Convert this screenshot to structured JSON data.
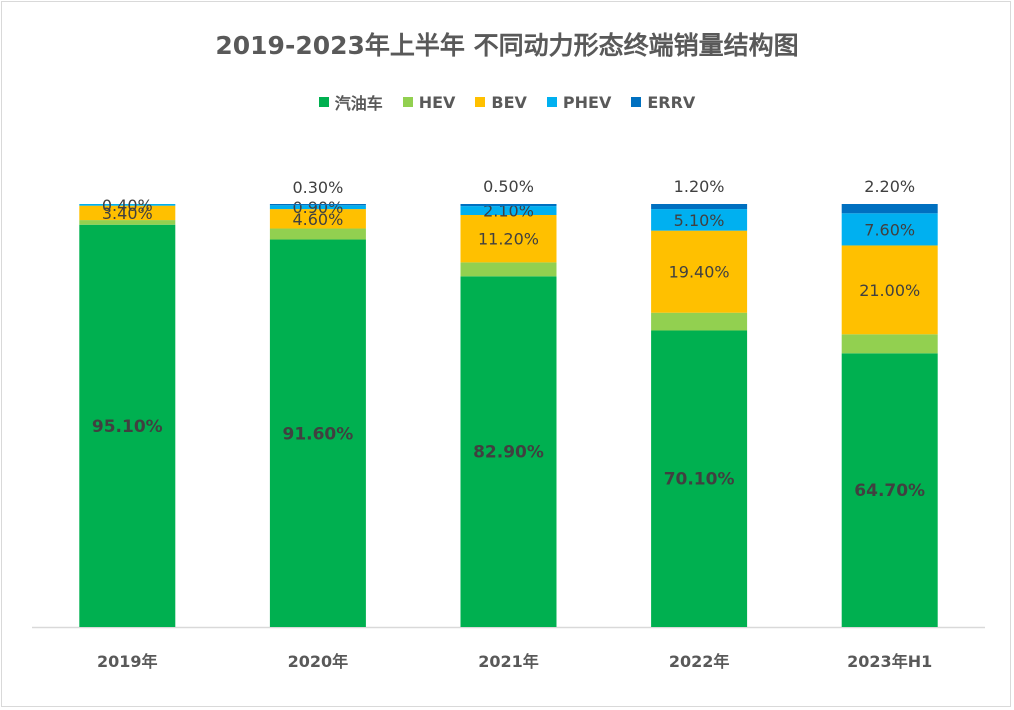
{
  "chart_data": {
    "type": "bar",
    "stacked": true,
    "title": "2019-2023年上半年 不同动力形态终端销量结构图",
    "xlabel": "",
    "ylabel": "",
    "ylim": [
      0,
      100
    ],
    "grid": false,
    "legend_position": "top",
    "categories": [
      "2019年",
      "2020年",
      "2021年",
      "2022年",
      "2023年H1"
    ],
    "series": [
      {
        "name": "汽油车",
        "color": "#00B050",
        "values": [
          95.1,
          91.6,
          82.9,
          70.1,
          64.7
        ],
        "labels": [
          "95.10%",
          "91.60%",
          "82.90%",
          "70.10%",
          "64.70%"
        ]
      },
      {
        "name": "HEV",
        "color": "#92D050",
        "values": [
          1.1,
          2.6,
          3.3,
          4.2,
          4.5
        ],
        "labels": [
          "",
          "",
          "",
          "",
          ""
        ]
      },
      {
        "name": "BEV",
        "color": "#FFC000",
        "values": [
          3.4,
          4.6,
          11.2,
          19.4,
          21.0
        ],
        "labels": [
          "3.40%",
          "4.60%",
          "11.20%",
          "19.40%",
          "21.00%"
        ]
      },
      {
        "name": "PHEV",
        "color": "#00B0F0",
        "values": [
          0.4,
          0.9,
          2.1,
          5.1,
          7.6
        ],
        "labels": [
          "0.40%",
          "0.90%",
          "2.10%",
          "5.10%",
          "7.60%"
        ]
      },
      {
        "name": "ERRV",
        "color": "#0070C0",
        "values": [
          0.0,
          0.3,
          0.5,
          1.2,
          2.2
        ],
        "labels": [
          "",
          "0.30%",
          "0.50%",
          "1.20%",
          "2.20%"
        ]
      }
    ]
  }
}
